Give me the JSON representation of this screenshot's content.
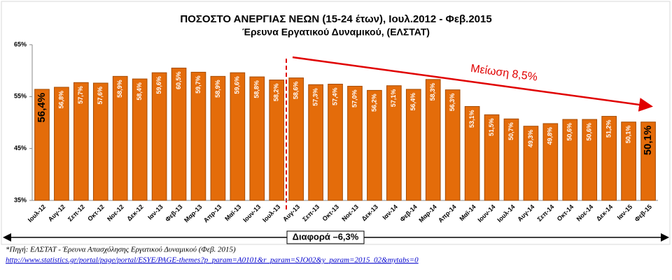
{
  "chart_data": {
    "type": "bar",
    "title": "ΠΟΣΟΣΤΟ ΑΝΕΡΓΙΑΣ ΝΕΩΝ (15-24 έτων), Ιουλ.2012 - Φεβ.2015",
    "subtitle": "Έρευνα Εργατικού Δυναμικού, (ΕΛΣΤΑΤ)",
    "categories": [
      "Ιουλ-12",
      "Αυγ-12",
      "Σεπ-12",
      "Οκτ-12",
      "Νοε-12",
      "Δεκ-12",
      "Ιαν-13",
      "Φεβ-13",
      "Μαρ-13",
      "Απρ-13",
      "Μαϊ-13",
      "Ιουν-13",
      "Ιουλ-13",
      "Αυγ-13",
      "Σεπ-13",
      "Οκτ-13",
      "Νοε-13",
      "Δεκ-13",
      "Ιαν-14",
      "Φεβ-14",
      "Μαρ-14",
      "Απρ-14",
      "Μαϊ-14",
      "Ιουν-14",
      "Ιουλ-14",
      "Αυγ-14",
      "Σεπ-14",
      "Οκτ-14",
      "Νοε-14",
      "Δεκ-14",
      "Ιαν-15",
      "Φεβ-15"
    ],
    "values": [
      56.4,
      56.8,
      57.7,
      57.6,
      58.9,
      58.4,
      59.6,
      60.5,
      59.7,
      58.9,
      59.6,
      58.8,
      58.2,
      58.6,
      57.3,
      57.4,
      57.0,
      56.2,
      57.1,
      56.4,
      58.3,
      56.3,
      53.1,
      51.5,
      50.7,
      49.3,
      49.8,
      50.6,
      50.6,
      51.2,
      50.1,
      50.1
    ],
    "value_labels": [
      "56,4%",
      "56,8%",
      "57,7%",
      "57,6%",
      "58,9%",
      "58,4%",
      "59,6%",
      "60,5%",
      "59,7%",
      "58,9%",
      "59,6%",
      "58,8%",
      "58,2%",
      "58,6%",
      "57,3%",
      "57,4%",
      "57,0%",
      "56,2%",
      "57,1%",
      "56,4%",
      "58,3%",
      "56,3%",
      "53,1%",
      "51,5%",
      "50,7%",
      "49,3%",
      "49,8%",
      "50,6%",
      "50,6%",
      "51,2%",
      "50,1%",
      "50,1%"
    ],
    "color": "#e46c0a",
    "ylim": [
      35,
      65
    ],
    "yticks": [
      {
        "value": 35,
        "label": "35%"
      },
      {
        "value": 45,
        "label": "45%"
      },
      {
        "value": 55,
        "label": "55%"
      },
      {
        "value": 65,
        "label": "65%"
      }
    ],
    "grid": false,
    "annotations": {
      "decrease": "Μείωση  8,5%",
      "difference": "Διαφορά  –6,3%"
    },
    "source": "*Πηγή: ΕΛΣΤΑΤ - Έρευνα Απασχόλησης Εργατικού Δυναμικού (Φεβ. 2015)",
    "source_url": "http://www.statistics.gr/portal/page/portal/ESYE/PAGE-themes?p_param=A0101&r_param=SJO02&y_param=2015_02&mytabs=0"
  }
}
